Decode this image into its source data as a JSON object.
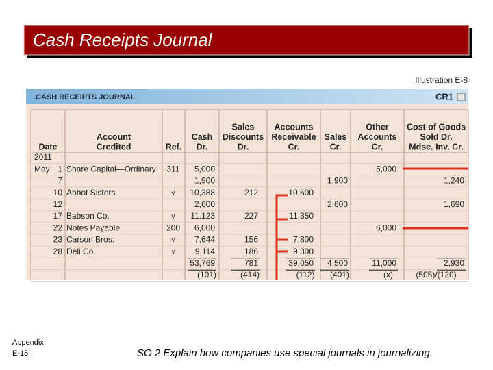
{
  "title": "Cash Receipts Journal",
  "illustration": "Illustration E-8",
  "journal": {
    "heading": "CASH RECEIPTS JOURNAL",
    "page": "CR1",
    "columns": [
      {
        "lines": [
          "Date"
        ]
      },
      {
        "lines": [
          "Account",
          "Credited"
        ]
      },
      {
        "lines": [
          "Ref."
        ]
      },
      {
        "lines": [
          "Cash",
          "Dr."
        ]
      },
      {
        "lines": [
          "Sales",
          "Discounts",
          "Dr."
        ]
      },
      {
        "lines": [
          "Accounts",
          "Receivable",
          "Cr."
        ]
      },
      {
        "lines": [
          "Sales",
          "Cr."
        ]
      },
      {
        "lines": [
          "Other",
          "Accounts",
          "Cr."
        ]
      },
      {
        "lines": [
          "Cost of Goods",
          "Sold Dr.",
          "Mdse. Inv. Cr."
        ]
      }
    ],
    "rows": [
      {
        "month": "2011"
      },
      {
        "month": "May",
        "day": "1",
        "account": "Share Capital—Ordinary",
        "ref": "311",
        "cash": "5,000",
        "other": "5,000"
      },
      {
        "day": "7",
        "cash": "1,900",
        "sales": "1,900",
        "cogs": "1,240"
      },
      {
        "day": "10",
        "account": "Abbot Sisters",
        "ref": "√",
        "cash": "10,388",
        "discounts": "212",
        "receivable": "10,600"
      },
      {
        "day": "12",
        "cash": "2,600",
        "sales": "2,600",
        "cogs": "1,690"
      },
      {
        "day": "17",
        "account": "Babson Co.",
        "ref": "√",
        "cash": "11,123",
        "discounts": "227",
        "receivable": "11,350"
      },
      {
        "day": "22",
        "account": "Notes Payable",
        "ref": "200",
        "cash": "6,000",
        "other": "6,000"
      },
      {
        "day": "23",
        "account": "Carson Bros.",
        "ref": "√",
        "cash": "7,644",
        "discounts": "156",
        "receivable": "7,800"
      },
      {
        "day": "28",
        "account": "Deli Co.",
        "ref": "√",
        "cash": "9,114",
        "discounts": "186",
        "receivable": "9,300"
      },
      {
        "cash": "53,769",
        "discounts": "781",
        "receivable": "39,050",
        "sales": "4,500",
        "other": "11,000",
        "cogs": "2,930"
      },
      {
        "cash": "(101)",
        "discounts": "(414)",
        "receivable": "(112)",
        "sales": "(401)",
        "other": "(x)",
        "cogs": "(505)/(120)"
      }
    ]
  },
  "footer": {
    "appendix": [
      "Appendix",
      "E-15"
    ],
    "objective": "SO 2  Explain how companies use special journals in journalizing."
  }
}
